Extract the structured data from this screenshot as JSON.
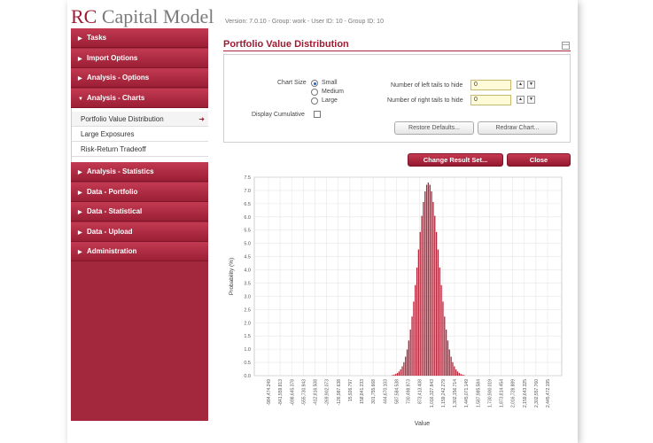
{
  "app": {
    "brand_rc": "RC",
    "brand_rest": "Capital Model",
    "version_line": "Version: 7.0.10  -  Group: work  -  User ID: 10  -  Group ID: 10"
  },
  "sidebar": {
    "groups_top": [
      "Tasks",
      "Import Options",
      "Analysis - Options"
    ],
    "expanded_group": "Analysis - Charts",
    "subitems": [
      "Portfolio Value Distribution",
      "Large Exposures",
      "Risk-Return Tradeoff"
    ],
    "groups_bottom": [
      "Analysis - Statistics",
      "Data - Portfolio",
      "Data - Statistical",
      "Data - Upload",
      "Administration"
    ]
  },
  "main": {
    "title": "Portfolio Value Distribution",
    "collapse_glyph": "—",
    "chart_size_label": "Chart Size",
    "sizes": [
      "Small",
      "Medium",
      "Large"
    ],
    "selected_size": "Small",
    "display_cumulative_label": "Display Cumulative",
    "left_tails_label": "Number of left tails to hide",
    "left_tails_value": "0",
    "right_tails_label": "Number of right tails to hide",
    "right_tails_value": "0",
    "restore_label": "Restore Defaults...",
    "redraw_label": "Redraw Chart...",
    "change_label": "Change Result Set...",
    "close_label": "Close",
    "spin_up": "▲",
    "spin_down": "▼",
    "nav_arrow_right": "▶",
    "nav_arrow_down": "▼",
    "active_arrow": "➜"
  },
  "colors": {
    "accent": "#9e1b32",
    "bar": "#b22a3e",
    "sidebar": "#a3283d"
  },
  "chart_data": {
    "type": "bar",
    "xlabel": "Value",
    "ylabel": "Probability (%)",
    "ylim": [
      0,
      7.5
    ],
    "y_ticks": [
      "0.0",
      "0.5",
      "1.0",
      "1.5",
      "2.0",
      "2.5",
      "3.0",
      "3.5",
      "4.0",
      "4.5",
      "5.0",
      "5.5",
      "6.0",
      "6.5",
      "7.0",
      "7.5"
    ],
    "x_tick_labels": [
      "-984,474.249",
      "-841,559.813",
      "-698,645.378",
      "-555,730.943",
      "-412,816.508",
      "-269,902.073",
      "-126,987.638",
      "15,926.797",
      "158,841.233",
      "301,755.668",
      "444,670.103",
      "587,584.538",
      "730,498.973",
      "873,413.408",
      "1,016,327.843",
      "1,159,242.279",
      "1,302,156.714",
      "1,445,071.149",
      "1,587,985.584",
      "1,730,900.019",
      "1,873,814.454",
      "2,016,728.889",
      "2,159,643.325",
      "2,302,557.760",
      "2,445,472.195"
    ],
    "grid": true,
    "peak_value": 7.3,
    "x_center": 980000,
    "x_spread": 130000,
    "bar_x_start": 40000,
    "bar_x_end": 2000000,
    "bar_step": 20000
  }
}
